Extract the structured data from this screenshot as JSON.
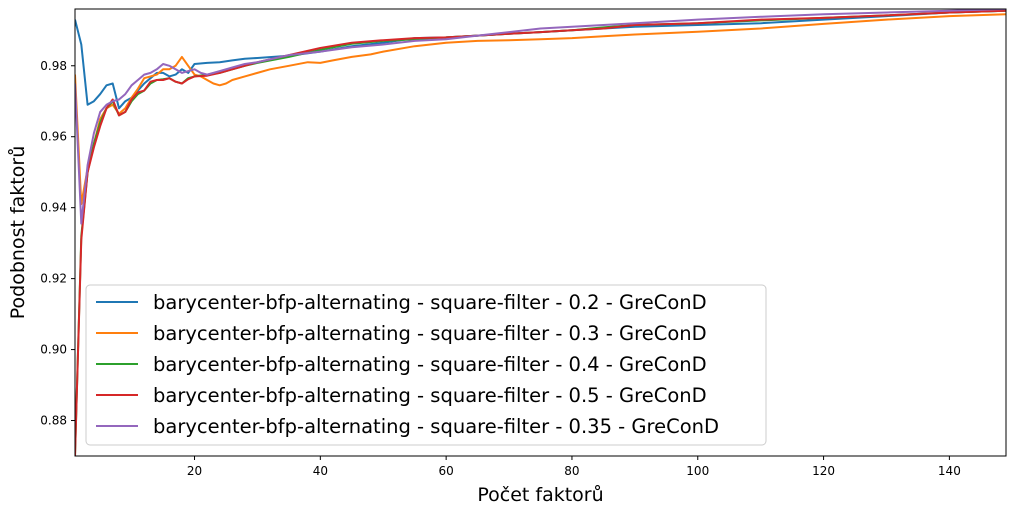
{
  "chart_data": {
    "type": "line",
    "title": "",
    "xlabel": "Počet faktorů",
    "ylabel": "Podobnost faktorů",
    "xlim": [
      1,
      149
    ],
    "ylim": [
      0.87,
      0.996
    ],
    "x_ticks": [
      20,
      40,
      60,
      80,
      100,
      120,
      140
    ],
    "y_ticks": [
      0.88,
      0.9,
      0.92,
      0.94,
      0.96,
      0.98
    ],
    "grid": false,
    "legend_position": "lower-left",
    "series": [
      {
        "name": "barycenter-bfp-alternating - square-filter - 0.2 - GreConD",
        "color": "#1f77b4",
        "points": [
          [
            1,
            0.993
          ],
          [
            2,
            0.986
          ],
          [
            3,
            0.969
          ],
          [
            4,
            0.97
          ],
          [
            5,
            0.972
          ],
          [
            6,
            0.9745
          ],
          [
            7,
            0.975
          ],
          [
            8,
            0.968
          ],
          [
            9,
            0.97
          ],
          [
            10,
            0.971
          ],
          [
            11,
            0.973
          ],
          [
            12,
            0.975
          ],
          [
            13,
            0.9765
          ],
          [
            14,
            0.978
          ],
          [
            15,
            0.978
          ],
          [
            16,
            0.977
          ],
          [
            17,
            0.9775
          ],
          [
            18,
            0.979
          ],
          [
            19,
            0.978
          ],
          [
            20,
            0.9805
          ],
          [
            22,
            0.9808
          ],
          [
            24,
            0.981
          ],
          [
            26,
            0.9815
          ],
          [
            28,
            0.982
          ],
          [
            30,
            0.9822
          ],
          [
            35,
            0.9828
          ],
          [
            40,
            0.984
          ],
          [
            45,
            0.9855
          ],
          [
            50,
            0.9865
          ],
          [
            55,
            0.9878
          ],
          [
            60,
            0.988
          ],
          [
            65,
            0.9885
          ],
          [
            70,
            0.989
          ],
          [
            75,
            0.9895
          ],
          [
            80,
            0.99
          ],
          [
            85,
            0.9905
          ],
          [
            90,
            0.991
          ],
          [
            100,
            0.9915
          ],
          [
            110,
            0.992
          ],
          [
            120,
            0.993
          ],
          [
            130,
            0.994
          ],
          [
            140,
            0.995
          ],
          [
            149,
            0.9955
          ]
        ]
      },
      {
        "name": "barycenter-bfp-alternating - square-filter - 0.3 - GreConD",
        "color": "#ff7f0e",
        "points": [
          [
            1,
            0.9775
          ],
          [
            2,
            0.941
          ],
          [
            3,
            0.951
          ],
          [
            4,
            0.958
          ],
          [
            5,
            0.965
          ],
          [
            6,
            0.968
          ],
          [
            7,
            0.969
          ],
          [
            8,
            0.9665
          ],
          [
            9,
            0.968
          ],
          [
            10,
            0.971
          ],
          [
            11,
            0.9735
          ],
          [
            12,
            0.9765
          ],
          [
            13,
            0.977
          ],
          [
            14,
            0.9775
          ],
          [
            15,
            0.979
          ],
          [
            16,
            0.979
          ],
          [
            17,
            0.98
          ],
          [
            18,
            0.9825
          ],
          [
            19,
            0.98
          ],
          [
            20,
            0.9775
          ],
          [
            21,
            0.977
          ],
          [
            22,
            0.976
          ],
          [
            23,
            0.975
          ],
          [
            24,
            0.9745
          ],
          [
            25,
            0.975
          ],
          [
            26,
            0.976
          ],
          [
            28,
            0.977
          ],
          [
            30,
            0.978
          ],
          [
            32,
            0.979
          ],
          [
            35,
            0.98
          ],
          [
            38,
            0.981
          ],
          [
            40,
            0.9808
          ],
          [
            42,
            0.9815
          ],
          [
            45,
            0.9825
          ],
          [
            48,
            0.9832
          ],
          [
            50,
            0.984
          ],
          [
            55,
            0.9855
          ],
          [
            60,
            0.9865
          ],
          [
            65,
            0.987
          ],
          [
            70,
            0.9872
          ],
          [
            75,
            0.9875
          ],
          [
            80,
            0.9878
          ],
          [
            85,
            0.9883
          ],
          [
            90,
            0.9888
          ],
          [
            95,
            0.9892
          ],
          [
            100,
            0.9896
          ],
          [
            110,
            0.9905
          ],
          [
            120,
            0.9918
          ],
          [
            130,
            0.993
          ],
          [
            140,
            0.994
          ],
          [
            149,
            0.9945
          ]
        ]
      },
      {
        "name": "barycenter-bfp-alternating - square-filter - 0.4 - GreConD",
        "color": "#2ca02c",
        "points": [
          [
            1,
            0.87
          ],
          [
            2,
            0.932
          ],
          [
            3,
            0.95
          ],
          [
            4,
            0.958
          ],
          [
            5,
            0.964
          ],
          [
            6,
            0.968
          ],
          [
            7,
            0.97
          ],
          [
            8,
            0.966
          ],
          [
            9,
            0.967
          ],
          [
            10,
            0.97
          ],
          [
            11,
            0.972
          ],
          [
            12,
            0.973
          ],
          [
            13,
            0.975
          ],
          [
            14,
            0.976
          ],
          [
            15,
            0.9762
          ],
          [
            16,
            0.9765
          ],
          [
            17,
            0.9755
          ],
          [
            18,
            0.975
          ],
          [
            19,
            0.9765
          ],
          [
            20,
            0.977
          ],
          [
            22,
            0.9775
          ],
          [
            24,
            0.978
          ],
          [
            26,
            0.979
          ],
          [
            28,
            0.98
          ],
          [
            30,
            0.9808
          ],
          [
            35,
            0.9825
          ],
          [
            40,
            0.9845
          ],
          [
            45,
            0.9862
          ],
          [
            50,
            0.987
          ],
          [
            55,
            0.9875
          ],
          [
            60,
            0.988
          ],
          [
            65,
            0.9885
          ],
          [
            70,
            0.989
          ],
          [
            75,
            0.9895
          ],
          [
            80,
            0.99
          ],
          [
            85,
            0.9908
          ],
          [
            90,
            0.9915
          ],
          [
            100,
            0.992
          ],
          [
            110,
            0.9928
          ],
          [
            120,
            0.9935
          ],
          [
            130,
            0.9942
          ],
          [
            140,
            0.995
          ],
          [
            149,
            0.9955
          ]
        ]
      },
      {
        "name": "barycenter-bfp-alternating - square-filter - 0.5 - GreConD",
        "color": "#d62728",
        "points": [
          [
            1,
            0.87
          ],
          [
            2,
            0.931
          ],
          [
            3,
            0.95
          ],
          [
            4,
            0.957
          ],
          [
            5,
            0.963
          ],
          [
            6,
            0.968
          ],
          [
            7,
            0.9705
          ],
          [
            8,
            0.966
          ],
          [
            9,
            0.967
          ],
          [
            10,
            0.9705
          ],
          [
            11,
            0.9725
          ],
          [
            12,
            0.973
          ],
          [
            13,
            0.9755
          ],
          [
            14,
            0.976
          ],
          [
            15,
            0.976
          ],
          [
            16,
            0.9765
          ],
          [
            17,
            0.9755
          ],
          [
            18,
            0.975
          ],
          [
            19,
            0.9762
          ],
          [
            20,
            0.977
          ],
          [
            22,
            0.9772
          ],
          [
            24,
            0.978
          ],
          [
            26,
            0.979
          ],
          [
            28,
            0.98
          ],
          [
            30,
            0.981
          ],
          [
            35,
            0.983
          ],
          [
            40,
            0.985
          ],
          [
            45,
            0.9865
          ],
          [
            50,
            0.9872
          ],
          [
            55,
            0.9878
          ],
          [
            60,
            0.988
          ],
          [
            65,
            0.9885
          ],
          [
            70,
            0.989
          ],
          [
            75,
            0.9895
          ],
          [
            80,
            0.99
          ],
          [
            85,
            0.9905
          ],
          [
            90,
            0.9915
          ],
          [
            100,
            0.992
          ],
          [
            110,
            0.993
          ],
          [
            120,
            0.9935
          ],
          [
            130,
            0.9942
          ],
          [
            140,
            0.995
          ],
          [
            149,
            0.9955
          ]
        ]
      },
      {
        "name": "barycenter-bfp-alternating - square-filter - 0.35 - GreConD",
        "color": "#9467bd",
        "points": [
          [
            1,
            0.975
          ],
          [
            2,
            0.9355
          ],
          [
            3,
            0.952
          ],
          [
            4,
            0.961
          ],
          [
            5,
            0.967
          ],
          [
            6,
            0.969
          ],
          [
            7,
            0.97
          ],
          [
            8,
            0.9705
          ],
          [
            9,
            0.972
          ],
          [
            10,
            0.9745
          ],
          [
            11,
            0.976
          ],
          [
            12,
            0.9775
          ],
          [
            13,
            0.978
          ],
          [
            14,
            0.979
          ],
          [
            15,
            0.9805
          ],
          [
            16,
            0.98
          ],
          [
            17,
            0.979
          ],
          [
            18,
            0.978
          ],
          [
            19,
            0.9785
          ],
          [
            20,
            0.979
          ],
          [
            21,
            0.978
          ],
          [
            22,
            0.9775
          ],
          [
            24,
            0.9785
          ],
          [
            26,
            0.9795
          ],
          [
            28,
            0.9805
          ],
          [
            30,
            0.981
          ],
          [
            35,
            0.983
          ],
          [
            40,
            0.984
          ],
          [
            45,
            0.9852
          ],
          [
            50,
            0.986
          ],
          [
            55,
            0.987
          ],
          [
            60,
            0.9875
          ],
          [
            65,
            0.9885
          ],
          [
            70,
            0.9895
          ],
          [
            75,
            0.9905
          ],
          [
            80,
            0.991
          ],
          [
            85,
            0.9915
          ],
          [
            90,
            0.992
          ],
          [
            100,
            0.993
          ],
          [
            110,
            0.9938
          ],
          [
            120,
            0.9945
          ],
          [
            130,
            0.995
          ],
          [
            140,
            0.9955
          ],
          [
            149,
            0.996
          ]
        ]
      }
    ]
  }
}
